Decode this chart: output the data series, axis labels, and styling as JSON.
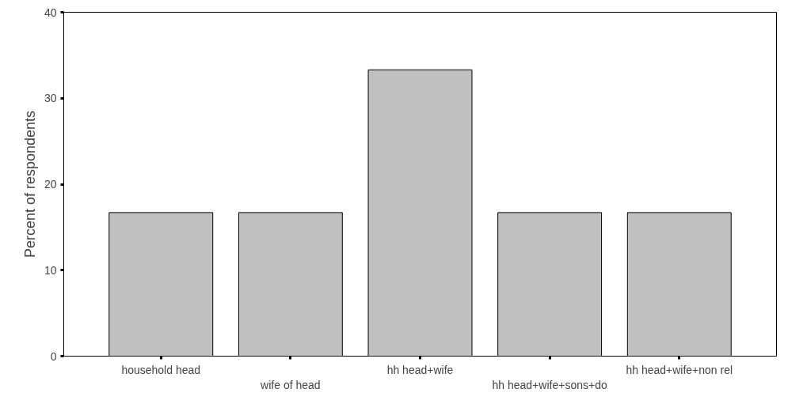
{
  "chart_data": {
    "type": "bar",
    "ylabel": "Percent of respondents",
    "categories": [
      "household head",
      "wife of head",
      "hh head+wife",
      "hh head+wife+sons+do",
      "hh head+wife+non rel"
    ],
    "values": [
      16.7,
      16.7,
      33.3,
      16.7,
      16.7
    ],
    "color": "#c0c0c0",
    "ylim": [
      0,
      40
    ],
    "yticks": [
      0,
      10,
      20,
      30,
      40
    ],
    "grid": false
  }
}
